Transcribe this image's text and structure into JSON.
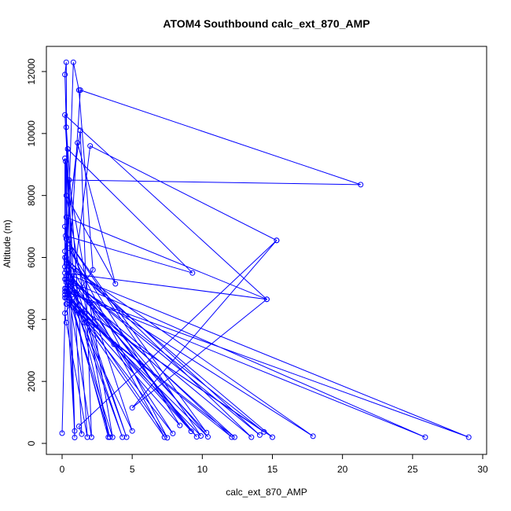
{
  "chart_data": {
    "type": "line",
    "title": "ATOM4 Southbound calc_ext_870_AMP",
    "xlabel": "calc_ext_870_AMP",
    "ylabel": "Altitude (m)",
    "xlim": [
      0,
      30
    ],
    "ylim": [
      0,
      12600
    ],
    "x_ticks": [
      0,
      5,
      10,
      15,
      20,
      25,
      30
    ],
    "y_ticks": [
      0,
      2000,
      4000,
      6000,
      8000,
      10000,
      12000
    ],
    "grid": false,
    "legend": "none",
    "markers": "open-circle",
    "color": "#0000ff",
    "series": [
      {
        "points": [
          [
            0.0,
            330
          ],
          [
            0.3,
            5900
          ],
          [
            0.25,
            9100
          ],
          [
            0.5,
            4700
          ],
          [
            0.9,
            190
          ],
          [
            0.2,
            11900
          ],
          [
            0.3,
            12300
          ],
          [
            0.35,
            4500
          ],
          [
            1.3,
            11400
          ],
          [
            21.3,
            8350
          ],
          [
            0.5,
            8500
          ],
          [
            0.7,
            4800
          ],
          [
            2.0,
            9600
          ],
          [
            15.3,
            6550
          ],
          [
            1.2,
            550
          ],
          [
            1.4,
            300
          ],
          [
            0.2,
            10600
          ],
          [
            14.6,
            4650
          ],
          [
            0.3,
            7300
          ],
          [
            0.4,
            9500
          ],
          [
            9.3,
            5500
          ],
          [
            0.25,
            6700
          ],
          [
            1.3,
            10100
          ],
          [
            2.1,
            200
          ],
          [
            0.3,
            5300
          ],
          [
            0.8,
            12300
          ],
          [
            1.2,
            11400
          ],
          [
            2.2,
            5600
          ],
          [
            0.2,
            4200
          ],
          [
            0.3,
            3900
          ],
          [
            1.8,
            200
          ],
          [
            0.3,
            10200
          ],
          [
            0.9,
            400
          ],
          [
            0.3,
            5000
          ],
          [
            3.4,
            200
          ],
          [
            0.2,
            6200
          ],
          [
            1.1,
            9700
          ],
          [
            3.8,
            5150
          ],
          [
            0.3,
            8000
          ],
          [
            3.3,
            200
          ],
          [
            0.3,
            5200
          ],
          [
            4.3,
            200
          ],
          [
            0.2,
            5700
          ],
          [
            0.2,
            9200
          ],
          [
            3.6,
            200
          ],
          [
            0.4,
            4800
          ],
          [
            5.0,
            400
          ],
          [
            0.2,
            7000
          ],
          [
            0.6,
            5300
          ],
          [
            4.6,
            200
          ],
          [
            0.3,
            6000
          ],
          [
            7.3,
            200
          ],
          [
            1.6,
            3900
          ],
          [
            0.2,
            5000
          ],
          [
            7.5,
            180
          ],
          [
            0.5,
            6300
          ],
          [
            8.4,
            580
          ],
          [
            0.3,
            4700
          ],
          [
            7.9,
            320
          ],
          [
            0.3,
            5600
          ],
          [
            9.2,
            390
          ],
          [
            0.2,
            4900
          ],
          [
            3.7,
            3200
          ],
          [
            0.4,
            5000
          ],
          [
            9.6,
            210
          ],
          [
            0.3,
            5600
          ],
          [
            10.4,
            210
          ],
          [
            0.2,
            4800
          ],
          [
            9.9,
            240
          ],
          [
            0.3,
            6600
          ],
          [
            10.3,
            350
          ],
          [
            0.4,
            5200
          ],
          [
            12.1,
            200
          ],
          [
            0.3,
            4500
          ],
          [
            12.3,
            200
          ],
          [
            0.4,
            5100
          ],
          [
            13.5,
            200
          ],
          [
            0.2,
            6000
          ],
          [
            14.1,
            270
          ],
          [
            0.3,
            5400
          ],
          [
            14.4,
            370
          ],
          [
            0.2,
            4700
          ],
          [
            15.0,
            200
          ],
          [
            0.3,
            5800
          ],
          [
            17.9,
            230
          ],
          [
            0.2,
            5300
          ],
          [
            25.9,
            200
          ],
          [
            0.3,
            4900
          ],
          [
            29.0,
            200
          ],
          [
            0.2,
            5500
          ],
          [
            14.6,
            4650
          ],
          [
            5.0,
            1150
          ],
          [
            15.3,
            6550
          ]
        ]
      }
    ]
  }
}
